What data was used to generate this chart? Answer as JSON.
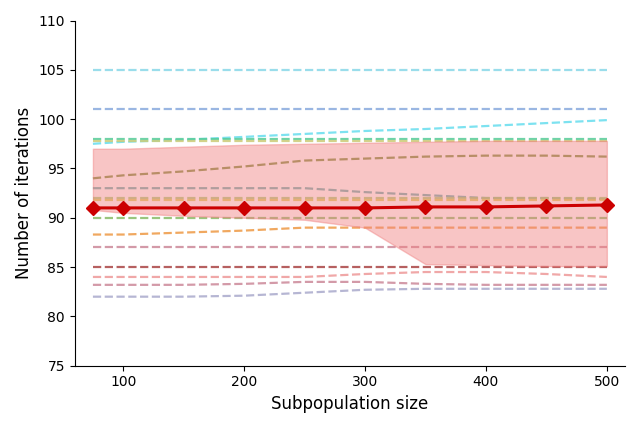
{
  "x": [
    75,
    100,
    150,
    200,
    250,
    300,
    350,
    400,
    450,
    500
  ],
  "main_y": [
    91.0,
    91.0,
    91.0,
    91.0,
    91.0,
    91.0,
    91.1,
    91.1,
    91.2,
    91.3
  ],
  "fill_upper": [
    97.0,
    97.0,
    97.2,
    97.4,
    97.5,
    97.6,
    97.7,
    97.8,
    97.8,
    97.8
  ],
  "fill_lower": [
    90.8,
    90.5,
    90.2,
    90.0,
    89.8,
    89.0,
    85.3,
    85.2,
    85.1,
    85.1
  ],
  "dashed_lines": [
    {
      "color": "#88d8e8",
      "y": [
        105.0,
        105.0,
        105.0,
        105.0,
        105.0,
        105.0,
        105.0,
        105.0,
        105.0,
        105.0
      ]
    },
    {
      "color": "#88aadd",
      "y": [
        101.0,
        101.0,
        101.0,
        101.0,
        101.0,
        101.0,
        101.0,
        101.0,
        101.0,
        101.0
      ]
    },
    {
      "color": "#66ddee",
      "y": [
        97.5,
        97.7,
        97.9,
        98.2,
        98.5,
        98.8,
        99.0,
        99.3,
        99.6,
        99.9
      ]
    },
    {
      "color": "#55cc99",
      "y": [
        98.0,
        98.0,
        98.0,
        98.0,
        98.0,
        98.0,
        98.0,
        98.0,
        98.0,
        98.0
      ]
    },
    {
      "color": "#cccc77",
      "y": [
        97.8,
        97.8,
        97.8,
        97.8,
        97.8,
        97.8,
        97.8,
        97.8,
        97.8,
        97.8
      ]
    },
    {
      "color": "#778833",
      "y": [
        94.0,
        94.3,
        94.7,
        95.2,
        95.8,
        96.0,
        96.2,
        96.3,
        96.3,
        96.2
      ]
    },
    {
      "color": "#66aaaa",
      "y": [
        93.0,
        93.0,
        93.0,
        93.0,
        93.0,
        92.6,
        92.3,
        92.0,
        92.0,
        91.9
      ]
    },
    {
      "color": "#aacc77",
      "y": [
        92.0,
        92.0,
        92.0,
        92.0,
        92.0,
        92.0,
        92.0,
        92.0,
        92.0,
        92.0
      ]
    },
    {
      "color": "#ddcc55",
      "y": [
        91.8,
        91.8,
        91.8,
        91.8,
        91.8,
        91.8,
        91.8,
        91.8,
        91.8,
        91.8
      ]
    },
    {
      "color": "#88bb66",
      "y": [
        90.0,
        90.0,
        90.0,
        90.0,
        90.0,
        90.0,
        90.0,
        90.0,
        90.0,
        90.0
      ]
    },
    {
      "color": "#ee9944",
      "y": [
        88.3,
        88.3,
        88.5,
        88.7,
        89.0,
        89.0,
        89.0,
        89.0,
        89.0,
        89.0
      ]
    },
    {
      "color": "#cc8899",
      "y": [
        87.0,
        87.0,
        87.0,
        87.0,
        87.0,
        87.0,
        87.0,
        87.0,
        87.0,
        87.0
      ]
    },
    {
      "color": "#aa4444",
      "y": [
        85.0,
        85.0,
        85.0,
        85.0,
        85.0,
        85.0,
        85.0,
        85.0,
        85.0,
        85.0
      ]
    },
    {
      "color": "#ee9999",
      "y": [
        84.0,
        84.0,
        84.0,
        84.0,
        84.0,
        84.3,
        84.5,
        84.5,
        84.3,
        84.0
      ]
    },
    {
      "color": "#cc8899",
      "y": [
        83.2,
        83.2,
        83.2,
        83.3,
        83.5,
        83.5,
        83.3,
        83.2,
        83.2,
        83.2
      ]
    },
    {
      "color": "#aaaacc",
      "y": [
        82.0,
        82.0,
        82.0,
        82.1,
        82.4,
        82.7,
        82.8,
        82.8,
        82.8,
        82.8
      ]
    }
  ],
  "dashed_lw": 1.6,
  "main_color": "#cc0000",
  "fill_color": "#f08080",
  "fill_alpha": 0.45,
  "marker": "D",
  "marker_size": 7,
  "main_lw": 2.2,
  "xlabel": "Subpopulation size",
  "ylabel": "Number of iterations",
  "xlim": [
    60,
    515
  ],
  "ylim": [
    75,
    110
  ],
  "xticks": [
    100,
    200,
    300,
    400,
    500
  ],
  "yticks": [
    75,
    80,
    85,
    90,
    95,
    100,
    105,
    110
  ]
}
